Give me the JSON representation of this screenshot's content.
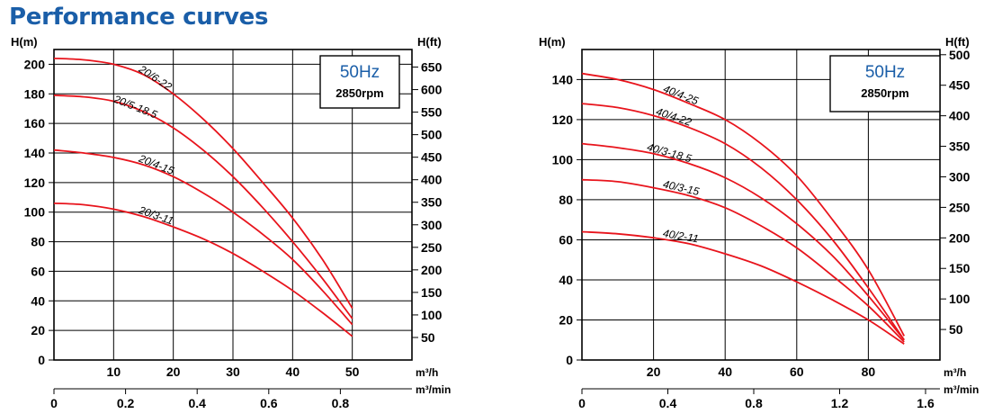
{
  "page": {
    "title": "Performance curves"
  },
  "chart_data": [
    {
      "type": "line",
      "ylabel": "H(m)",
      "y2label": "H(ft)",
      "xlabel": "m³/h",
      "x2label": "m³/min",
      "xlim": [
        0,
        60
      ],
      "ylim": [
        0,
        210
      ],
      "x2lim": [
        0,
        1
      ],
      "xticks": [
        10,
        20,
        30,
        40,
        50
      ],
      "yticks": [
        0,
        20,
        40,
        60,
        80,
        100,
        120,
        140,
        160,
        180,
        200
      ],
      "y2ticks": [
        50,
        100,
        150,
        200,
        250,
        300,
        350,
        400,
        450,
        500,
        550,
        600,
        650
      ],
      "x2ticks": [
        0,
        0.2,
        0.4,
        0.6,
        0.8
      ],
      "x2ticklabels": [
        "0",
        "0.2",
        "0.4",
        "0.6",
        "0.8"
      ],
      "info_box": {
        "frequency": "50Hz",
        "speed": "2850rpm"
      },
      "grid": true,
      "series": [
        {
          "name": "20/6-22",
          "x": [
            0,
            5,
            10,
            15,
            20,
            25,
            30,
            35,
            40,
            45,
            50
          ],
          "y": [
            204,
            203,
            200,
            193,
            180,
            163,
            143,
            120,
            96,
            68,
            35
          ]
        },
        {
          "name": "20/5-18.5",
          "x": [
            0,
            5,
            10,
            15,
            20,
            25,
            30,
            35,
            40,
            45,
            50
          ],
          "y": [
            179,
            178,
            175,
            168,
            157,
            142,
            124,
            103,
            80,
            55,
            28
          ]
        },
        {
          "name": "20/4-15",
          "x": [
            0,
            5,
            10,
            15,
            20,
            25,
            30,
            35,
            40,
            45,
            50
          ],
          "y": [
            142,
            140,
            137,
            132,
            124,
            113,
            100,
            85,
            68,
            47,
            24
          ]
        },
        {
          "name": "20/3-11",
          "x": [
            0,
            5,
            10,
            15,
            20,
            25,
            30,
            35,
            40,
            45,
            50
          ],
          "y": [
            106,
            105,
            102,
            97,
            90,
            82,
            72,
            60,
            47,
            32,
            16
          ]
        }
      ]
    },
    {
      "type": "line",
      "ylabel": "H(m)",
      "y2label": "H(ft)",
      "xlabel": "m³/h",
      "x2label": "m³/min",
      "xlim": [
        0,
        100
      ],
      "ylim": [
        0,
        155
      ],
      "x2lim": [
        0,
        1.667
      ],
      "xticks": [
        20,
        40,
        60,
        80
      ],
      "yticks": [
        0,
        20,
        40,
        60,
        80,
        100,
        120,
        140
      ],
      "y2ticks": [
        50,
        100,
        150,
        200,
        250,
        300,
        350,
        400,
        450,
        500
      ],
      "x2ticks": [
        0,
        0.4,
        0.8,
        1.2,
        1.6
      ],
      "x2ticklabels": [
        "0",
        "0.4",
        "0.8",
        "1.2",
        "1.6"
      ],
      "info_box": {
        "frequency": "50Hz",
        "speed": "2850rpm"
      },
      "grid": true,
      "series": [
        {
          "name": "40/4-25",
          "x": [
            0,
            10,
            20,
            30,
            40,
            50,
            60,
            70,
            80,
            90
          ],
          "y": [
            143,
            140,
            135,
            128,
            120,
            108,
            92,
            70,
            45,
            12
          ]
        },
        {
          "name": "40/4-22",
          "x": [
            0,
            10,
            20,
            30,
            40,
            50,
            60,
            70,
            80,
            90
          ],
          "y": [
            128,
            126,
            122,
            116,
            108,
            96,
            80,
            60,
            36,
            10
          ]
        },
        {
          "name": "40/3-18.5",
          "x": [
            0,
            10,
            20,
            30,
            40,
            50,
            60,
            70,
            80,
            90
          ],
          "y": [
            108,
            106,
            103,
            98,
            91,
            81,
            68,
            52,
            32,
            10
          ]
        },
        {
          "name": "40/3-15",
          "x": [
            0,
            10,
            20,
            30,
            40,
            50,
            60,
            70,
            80,
            90
          ],
          "y": [
            90,
            89,
            86,
            82,
            76,
            67,
            56,
            42,
            27,
            9
          ]
        },
        {
          "name": "40/2-11",
          "x": [
            0,
            10,
            20,
            30,
            40,
            50,
            60,
            70,
            80,
            90
          ],
          "y": [
            64,
            63,
            61,
            58,
            53,
            47,
            39,
            30,
            20,
            8
          ]
        }
      ]
    }
  ]
}
